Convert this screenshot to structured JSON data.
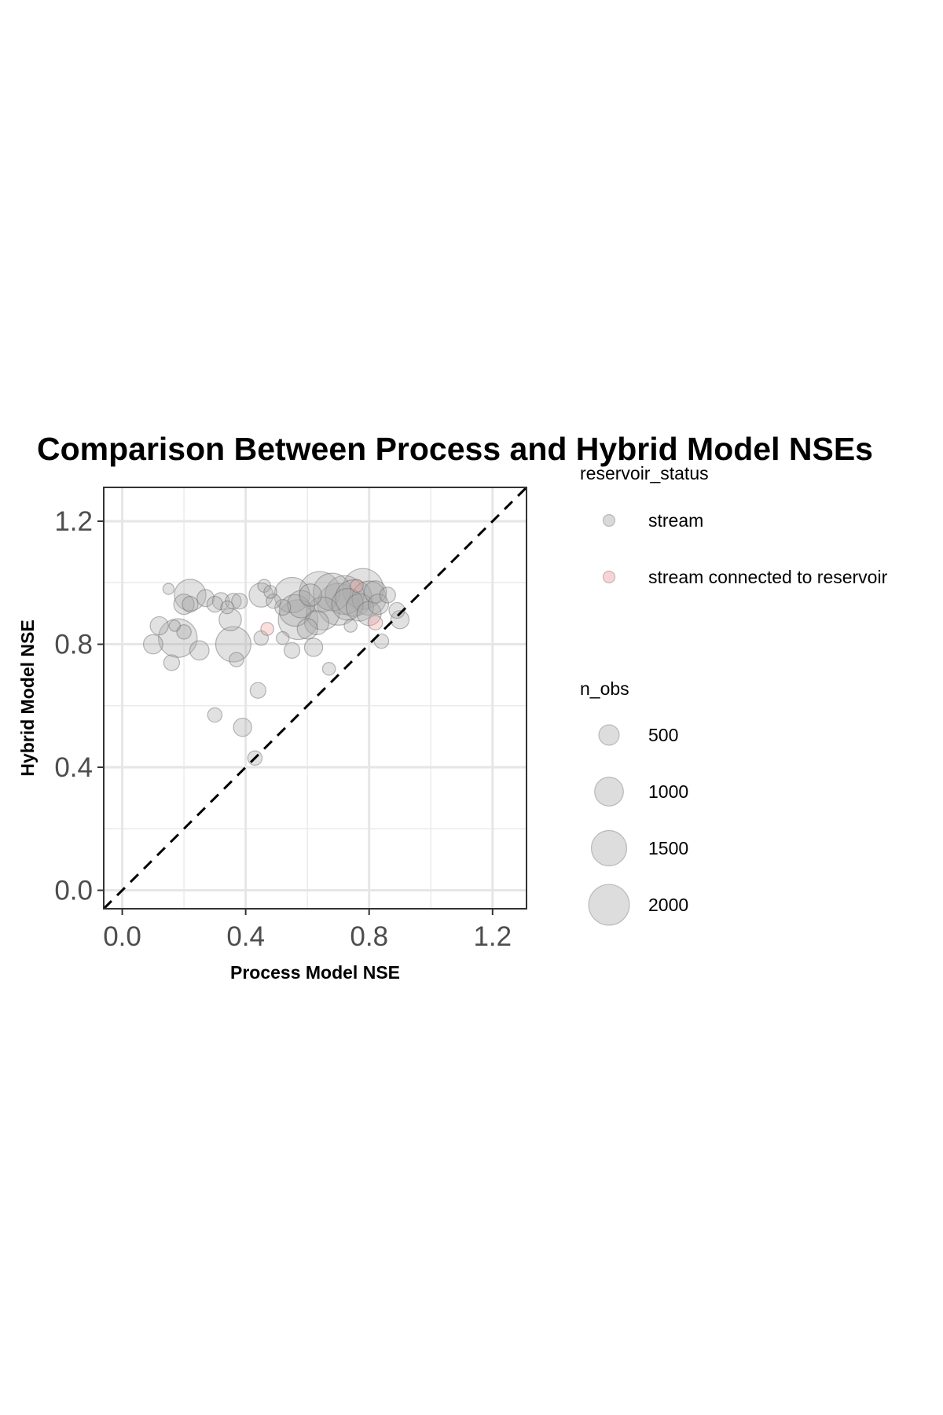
{
  "chart_data": {
    "type": "scatter",
    "title": "Comparison Between Process and Hybrid Model NSEs",
    "xlabel": "Process Model NSE",
    "ylabel": "Hybrid Model NSE",
    "xlim": [
      -0.06,
      1.31
    ],
    "ylim": [
      -0.06,
      1.31
    ],
    "x_ticks": [
      "0.0",
      "0.4",
      "0.8",
      "1.2"
    ],
    "y_ticks": [
      "0.0",
      "0.4",
      "0.8",
      "1.2"
    ],
    "x_tick_values": [
      0.0,
      0.4,
      0.8,
      1.2
    ],
    "y_tick_values": [
      0.0,
      0.4,
      0.8,
      1.2
    ],
    "grid": true,
    "reference_line": "y = x (dashed)",
    "legend_position": "right",
    "color_legend": {
      "title": "reservoir_status",
      "items": [
        {
          "label": "stream",
          "color": "#aaaaaa"
        },
        {
          "label": "stream connected to reservoir",
          "color": "#f4a0a0"
        }
      ]
    },
    "size_legend": {
      "title": "n_obs",
      "items": [
        {
          "label": "500",
          "value": 500
        },
        {
          "label": "1000",
          "value": 1000
        },
        {
          "label": "1500",
          "value": 1500
        },
        {
          "label": "2000",
          "value": 2000
        }
      ]
    },
    "series": [
      {
        "name": "stream",
        "points": [
          {
            "x": 0.15,
            "y": 0.98,
            "n": 150
          },
          {
            "x": 0.17,
            "y": 0.86,
            "n": 150
          },
          {
            "x": 0.12,
            "y": 0.86,
            "n": 400
          },
          {
            "x": 0.1,
            "y": 0.8,
            "n": 450
          },
          {
            "x": 0.16,
            "y": 0.74,
            "n": 300
          },
          {
            "x": 0.18,
            "y": 0.82,
            "n": 1800
          },
          {
            "x": 0.2,
            "y": 0.84,
            "n": 250
          },
          {
            "x": 0.2,
            "y": 0.93,
            "n": 500
          },
          {
            "x": 0.22,
            "y": 0.96,
            "n": 1200
          },
          {
            "x": 0.22,
            "y": 0.93,
            "n": 300
          },
          {
            "x": 0.25,
            "y": 0.78,
            "n": 450
          },
          {
            "x": 0.27,
            "y": 0.95,
            "n": 350
          },
          {
            "x": 0.3,
            "y": 0.93,
            "n": 300
          },
          {
            "x": 0.32,
            "y": 0.94,
            "n": 350
          },
          {
            "x": 0.34,
            "y": 0.92,
            "n": 200
          },
          {
            "x": 0.35,
            "y": 0.88,
            "n": 600
          },
          {
            "x": 0.36,
            "y": 0.8,
            "n": 1500
          },
          {
            "x": 0.36,
            "y": 0.94,
            "n": 300
          },
          {
            "x": 0.37,
            "y": 0.75,
            "n": 250
          },
          {
            "x": 0.38,
            "y": 0.94,
            "n": 300
          },
          {
            "x": 0.3,
            "y": 0.57,
            "n": 250
          },
          {
            "x": 0.39,
            "y": 0.53,
            "n": 400
          },
          {
            "x": 0.43,
            "y": 0.43,
            "n": 250
          },
          {
            "x": 0.44,
            "y": 0.65,
            "n": 300
          },
          {
            "x": 0.45,
            "y": 0.82,
            "n": 250
          },
          {
            "x": 0.46,
            "y": 0.99,
            "n": 200
          },
          {
            "x": 0.45,
            "y": 0.96,
            "n": 700
          },
          {
            "x": 0.48,
            "y": 0.97,
            "n": 200
          },
          {
            "x": 0.49,
            "y": 0.94,
            "n": 250
          },
          {
            "x": 0.52,
            "y": 0.92,
            "n": 300
          },
          {
            "x": 0.52,
            "y": 0.82,
            "n": 200
          },
          {
            "x": 0.55,
            "y": 0.96,
            "n": 1500
          },
          {
            "x": 0.56,
            "y": 0.91,
            "n": 1200
          },
          {
            "x": 0.55,
            "y": 0.78,
            "n": 300
          },
          {
            "x": 0.57,
            "y": 0.88,
            "n": 1900
          },
          {
            "x": 0.58,
            "y": 0.93,
            "n": 900
          },
          {
            "x": 0.6,
            "y": 0.85,
            "n": 500
          },
          {
            "x": 0.61,
            "y": 0.96,
            "n": 600
          },
          {
            "x": 0.62,
            "y": 0.79,
            "n": 400
          },
          {
            "x": 0.63,
            "y": 0.87,
            "n": 700
          },
          {
            "x": 0.64,
            "y": 0.97,
            "n": 2000
          },
          {
            "x": 0.65,
            "y": 0.9,
            "n": 1300
          },
          {
            "x": 0.67,
            "y": 0.72,
            "n": 200
          },
          {
            "x": 0.68,
            "y": 0.97,
            "n": 1700
          },
          {
            "x": 0.7,
            "y": 0.93,
            "n": 2100
          },
          {
            "x": 0.72,
            "y": 0.96,
            "n": 1800
          },
          {
            "x": 0.73,
            "y": 0.93,
            "n": 1200
          },
          {
            "x": 0.74,
            "y": 0.86,
            "n": 200
          },
          {
            "x": 0.75,
            "y": 0.95,
            "n": 1600
          },
          {
            "x": 0.77,
            "y": 0.92,
            "n": 900
          },
          {
            "x": 0.78,
            "y": 0.98,
            "n": 2000
          },
          {
            "x": 0.8,
            "y": 0.95,
            "n": 1400
          },
          {
            "x": 0.8,
            "y": 0.9,
            "n": 700
          },
          {
            "x": 0.82,
            "y": 0.97,
            "n": 600
          },
          {
            "x": 0.83,
            "y": 0.93,
            "n": 500
          },
          {
            "x": 0.84,
            "y": 0.81,
            "n": 250
          },
          {
            "x": 0.86,
            "y": 0.96,
            "n": 300
          },
          {
            "x": 0.89,
            "y": 0.91,
            "n": 300
          },
          {
            "x": 0.9,
            "y": 0.88,
            "n": 400
          }
        ]
      },
      {
        "name": "stream connected to reservoir",
        "points": [
          {
            "x": 0.47,
            "y": 0.85,
            "n": 200
          },
          {
            "x": 0.82,
            "y": 0.87,
            "n": 250
          },
          {
            "x": 0.76,
            "y": 0.99,
            "n": 200
          }
        ]
      }
    ]
  }
}
